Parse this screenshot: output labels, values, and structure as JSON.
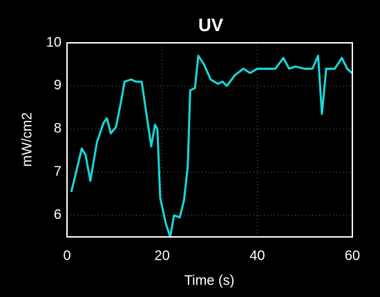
{
  "chart_data": {
    "type": "line",
    "title": "UV",
    "x_label": "Time (s)",
    "y_label": "mW/cm2",
    "x": [
      0.9,
      3.1,
      3.9,
      4.9,
      6.3,
      7.7,
      8.4,
      9.2,
      10.3,
      11.3,
      12.1,
      13.5,
      14.5,
      15.7,
      16.7,
      17.7,
      18.5,
      19.0,
      19.6,
      20.8,
      21.7,
      22.5,
      23.7,
      24.6,
      25.4,
      25.9,
      26.9,
      27.6,
      28.8,
      30.2,
      31.7,
      32.7,
      33.6,
      35.3,
      37.1,
      38.5,
      40.0,
      41.9,
      43.8,
      45.5,
      46.7,
      48.0,
      49.9,
      51.6,
      52.8,
      53.6,
      54.5,
      56.3,
      57.8,
      58.9,
      59.9
    ],
    "series": [
      {
        "name": "UV",
        "color": "#19d8d8",
        "values": [
          6.54,
          7.55,
          7.4,
          6.8,
          7.7,
          8.15,
          8.25,
          7.9,
          8.05,
          8.6,
          9.1,
          9.15,
          9.1,
          9.1,
          8.35,
          7.6,
          8.1,
          8.0,
          6.4,
          5.8,
          5.5,
          6.0,
          5.95,
          6.35,
          7.15,
          8.9,
          8.95,
          9.7,
          9.5,
          9.15,
          9.05,
          9.1,
          9.0,
          9.25,
          9.4,
          9.3,
          9.4,
          9.4,
          9.4,
          9.65,
          9.4,
          9.45,
          9.4,
          9.4,
          9.7,
          8.35,
          9.4,
          9.4,
          9.65,
          9.4,
          9.3
        ]
      }
    ],
    "xlim": [
      0,
      60
    ],
    "xticks": [
      0,
      20,
      40,
      60
    ],
    "ylim": [
      5.5,
      10
    ],
    "yticks": [
      6,
      7,
      8,
      9,
      10
    ],
    "grid": true
  }
}
